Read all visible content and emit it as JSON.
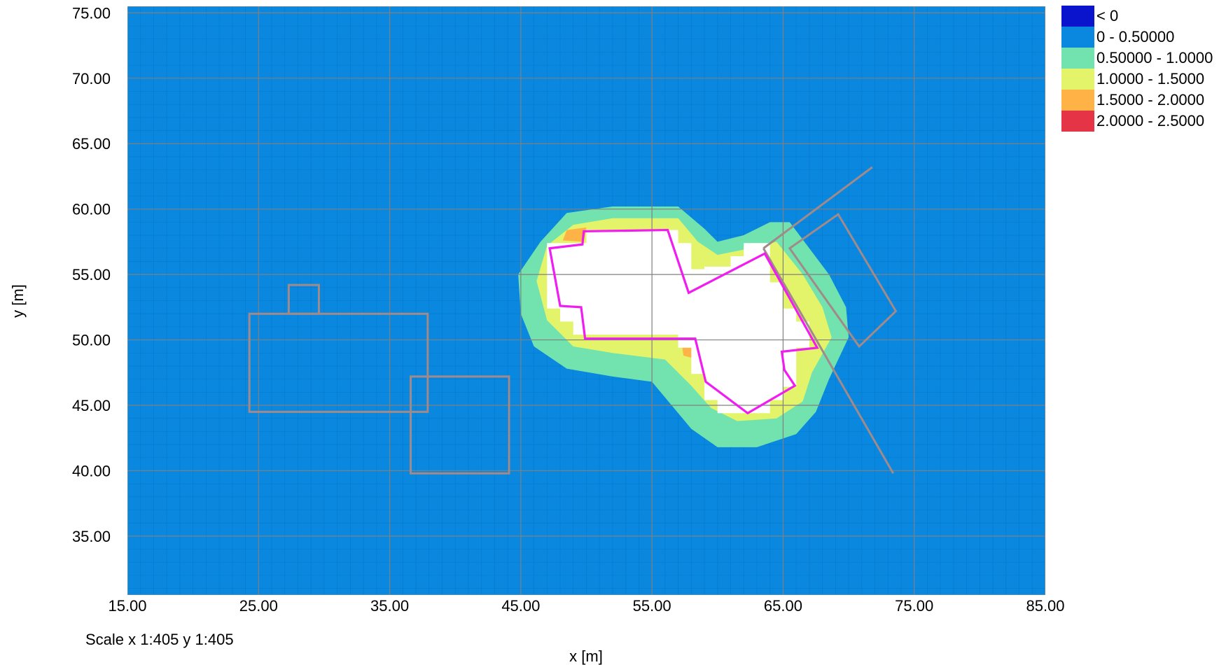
{
  "chart_data": {
    "type": "heatmap",
    "xlabel": "x [m]",
    "ylabel": "y [m]",
    "xlim": [
      15,
      85
    ],
    "ylim": [
      30.5,
      75.5
    ],
    "x_ticks": [
      15,
      25,
      35,
      45,
      55,
      65,
      75,
      85
    ],
    "x_tick_labels": [
      "15.00",
      "25.00",
      "35.00",
      "45.00",
      "55.00",
      "65.00",
      "75.00",
      "85.00"
    ],
    "y_ticks": [
      35,
      40,
      45,
      50,
      55,
      60,
      65,
      70,
      75
    ],
    "y_tick_labels": [
      "35.00",
      "40.00",
      "45.00",
      "50.00",
      "55.00",
      "60.00",
      "65.00",
      "70.00",
      "75.00"
    ],
    "grid": true,
    "scale_text": "Scale x 1:405  y 1:405",
    "background_class": 1,
    "legend_position": "top-right",
    "legend": [
      {
        "label": "< 0",
        "color": "#0A14CC"
      },
      {
        "label": "0 - 0.50000",
        "color": "#0A88E0"
      },
      {
        "label": "0.50000 - 1.0000",
        "color": "#72E3AE"
      },
      {
        "label": "1.0000 - 1.5000",
        "color": "#E3F46A"
      },
      {
        "label": "1.5000 - 2.0000",
        "color": "#FFB347"
      },
      {
        "label": "2.0000 - 2.5000",
        "color": "#E43445"
      }
    ],
    "contour_regions": [
      {
        "class": 2,
        "points": [
          [
            46.5,
            57.5
          ],
          [
            48.5,
            59.7
          ],
          [
            52,
            60.2
          ],
          [
            57,
            60.2
          ],
          [
            59,
            58.5
          ],
          [
            60,
            57.5
          ],
          [
            62,
            58
          ],
          [
            64,
            59
          ],
          [
            65.5,
            59
          ],
          [
            68.5,
            55
          ],
          [
            69.8,
            52.5
          ],
          [
            70,
            50.2
          ],
          [
            68.5,
            47
          ],
          [
            67.5,
            44.5
          ],
          [
            66,
            42.8
          ],
          [
            63,
            41.8
          ],
          [
            60,
            41.8
          ],
          [
            58,
            43.2
          ],
          [
            56.5,
            45
          ],
          [
            55,
            46.8
          ],
          [
            52,
            47.2
          ],
          [
            48.5,
            47.8
          ],
          [
            46,
            49.5
          ],
          [
            45,
            52
          ],
          [
            44.8,
            55
          ]
        ]
      },
      {
        "class": 3,
        "points": [
          [
            47,
            57.2
          ],
          [
            49,
            58.8
          ],
          [
            52,
            59.3
          ],
          [
            57,
            59.3
          ],
          [
            58.5,
            57.5
          ],
          [
            60,
            56.5
          ],
          [
            62.5,
            57
          ],
          [
            64.5,
            57.5
          ],
          [
            66.5,
            55
          ],
          [
            68,
            52.5
          ],
          [
            68.7,
            50.2
          ],
          [
            67.2,
            47.5
          ],
          [
            66.5,
            45.3
          ],
          [
            64.5,
            44
          ],
          [
            61.5,
            43.8
          ],
          [
            59.5,
            44.8
          ],
          [
            58,
            46.5
          ],
          [
            56,
            48.5
          ],
          [
            52,
            49
          ],
          [
            49,
            49.5
          ],
          [
            47,
            51.5
          ],
          [
            46.2,
            54.5
          ]
        ]
      },
      {
        "class": 4,
        "points": [
          [
            48.5,
            58.4
          ],
          [
            50,
            58.6
          ],
          [
            49.8,
            57.5
          ],
          [
            48.2,
            57.6
          ]
        ]
      },
      {
        "class": 4,
        "points": [
          [
            57.3,
            49.5
          ],
          [
            58.3,
            49.7
          ],
          [
            58.5,
            48.5
          ],
          [
            57.4,
            48.8
          ]
        ]
      },
      {
        "class": 4,
        "points": [
          [
            64.5,
            49
          ],
          [
            66,
            49.3
          ],
          [
            65.8,
            48.1
          ],
          [
            64.6,
            48.3
          ]
        ]
      },
      {
        "class": 0,
        "isWhite": true,
        "points": [
          [
            47,
            57.4
          ],
          [
            50,
            57.4
          ],
          [
            50,
            58.4
          ],
          [
            57,
            58.4
          ],
          [
            57,
            57.4
          ],
          [
            58,
            57.4
          ],
          [
            58,
            55.4
          ],
          [
            59,
            55.4
          ],
          [
            59,
            55.6
          ],
          [
            61,
            55.6
          ],
          [
            61,
            56.4
          ],
          [
            62,
            56.4
          ],
          [
            62,
            57.4
          ],
          [
            64,
            57.4
          ],
          [
            64,
            54.4
          ],
          [
            65,
            54.4
          ],
          [
            65,
            52.4
          ],
          [
            66,
            52.4
          ],
          [
            66,
            51.4
          ],
          [
            67,
            51.4
          ],
          [
            67,
            49.4
          ],
          [
            66,
            49.4
          ],
          [
            66,
            46.4
          ],
          [
            65,
            46.4
          ],
          [
            65,
            45.4
          ],
          [
            64,
            45.4
          ],
          [
            64,
            44.4
          ],
          [
            60,
            44.4
          ],
          [
            60,
            45.4
          ],
          [
            59,
            45.4
          ],
          [
            59,
            47.4
          ],
          [
            58,
            47.4
          ],
          [
            58,
            49.4
          ],
          [
            57,
            49.4
          ],
          [
            57,
            50.4
          ],
          [
            49,
            50.4
          ],
          [
            49,
            51.4
          ],
          [
            48,
            51.4
          ],
          [
            48,
            52.4
          ],
          [
            47,
            52.4
          ]
        ]
      }
    ],
    "outline_footprint": [
      [
        47.2,
        57
      ],
      [
        49.7,
        57.3
      ],
      [
        49.8,
        58.3
      ],
      [
        56.2,
        58.4
      ],
      [
        57.8,
        53.6
      ],
      [
        63.6,
        56.6
      ],
      [
        67.6,
        49.4
      ],
      [
        64.9,
        49.1
      ],
      [
        65.1,
        47.7
      ],
      [
        65.9,
        46.5
      ],
      [
        62.3,
        44.4
      ],
      [
        59.1,
        46.8
      ],
      [
        58.3,
        50.1
      ],
      [
        49.9,
        50.1
      ],
      [
        49.6,
        52.5
      ],
      [
        48,
        52.6
      ]
    ],
    "obstacle_outlines": [
      [
        [
          24.3,
          52.0
        ],
        [
          37.9,
          52.0
        ],
        [
          37.9,
          44.5
        ],
        [
          24.3,
          44.5
        ]
      ],
      [
        [
          27.3,
          52.0
        ],
        [
          27.3,
          54.2
        ],
        [
          29.6,
          54.2
        ],
        [
          29.6,
          52.0
        ]
      ],
      [
        [
          36.6,
          47.2
        ],
        [
          44.1,
          47.2
        ],
        [
          44.1,
          39.8
        ],
        [
          36.6,
          39.8
        ]
      ],
      [
        [
          65.5,
          57.0
        ],
        [
          69.2,
          59.6
        ],
        [
          73.6,
          52.2
        ],
        [
          70.8,
          49.5
        ]
      ]
    ],
    "obstacle_lines": [
      [
        [
          63.5,
          57.0
        ],
        [
          71.8,
          63.2
        ]
      ],
      [
        [
          63.5,
          57.0
        ],
        [
          73.4,
          39.8
        ]
      ]
    ]
  }
}
